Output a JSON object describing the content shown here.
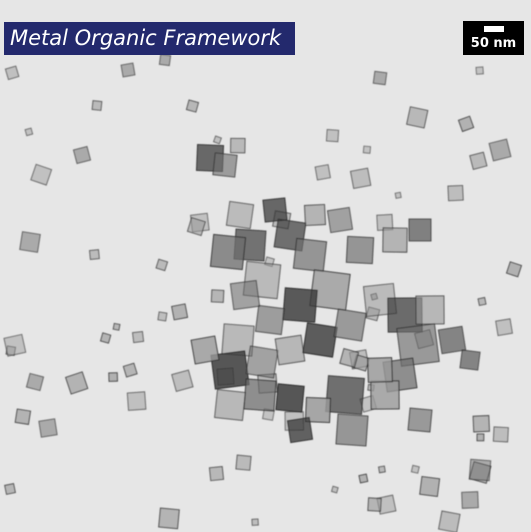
{
  "image": {
    "title": "Metal Organic Framework",
    "scale_bar": "50 nm",
    "colors": {
      "background": "#e6e6e6",
      "title_banner": "#23296d",
      "title_text": "#ffffff",
      "scale_box": "#000000",
      "particle_dark": "#3a3a3a",
      "particle_mid": "#6e6e6e",
      "particle_light": "#9a9a9a"
    }
  }
}
